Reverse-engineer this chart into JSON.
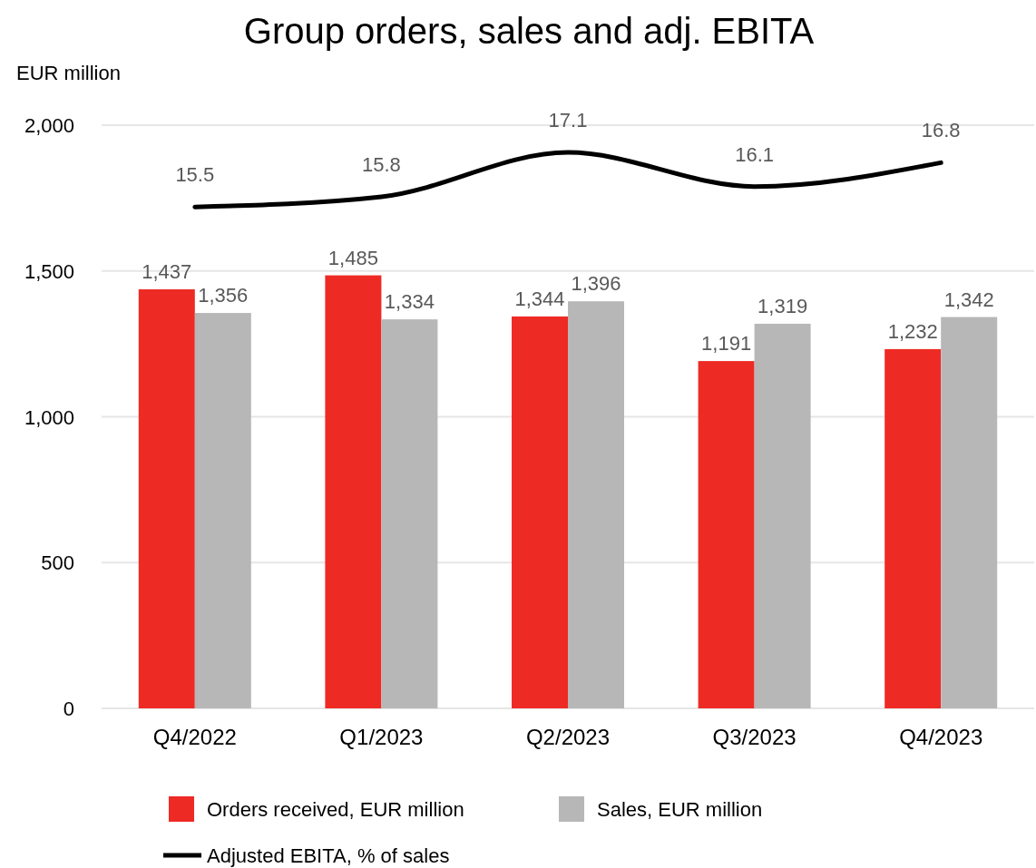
{
  "chart_data": {
    "type": "bar",
    "title": "Group orders, sales and adj. EBITA",
    "ylabel": "EUR million",
    "categories": [
      "Q4/2022",
      "Q1/2023",
      "Q2/2023",
      "Q3/2023",
      "Q4/2023"
    ],
    "series": [
      {
        "name": "Orders received, EUR million",
        "color": "#ee2a24",
        "values": [
          1437,
          1485,
          1344,
          1191,
          1232
        ],
        "value_labels": [
          "1,437",
          "1,485",
          "1,344",
          "1,191",
          "1,232"
        ]
      },
      {
        "name": "Sales, EUR million",
        "color": "#b7b7b7",
        "values": [
          1356,
          1334,
          1396,
          1319,
          1342
        ],
        "value_labels": [
          "1,356",
          "1,334",
          "1,396",
          "1,319",
          "1,342"
        ]
      },
      {
        "name": "Adjusted EBITA, % of sales",
        "type": "line",
        "axis": "y2",
        "color": "#000000",
        "values": [
          15.5,
          15.8,
          17.1,
          16.1,
          16.8
        ],
        "value_labels": [
          "15.5",
          "15.8",
          "17.1",
          "16.1",
          "16.8"
        ]
      }
    ],
    "ylim": [
      0,
      2000
    ],
    "yticks": [
      0,
      {
        "value": 500,
        "label": "500"
      },
      {
        "value": 1000,
        "label": "1,000"
      },
      {
        "value": 1500,
        "label": "1,500"
      },
      {
        "value": 2000,
        "label": "2,000"
      }
    ],
    "y2lim": [
      0.8,
      17.9
    ],
    "grid": "y",
    "legend": "bottom",
    "marker": "none",
    "line_style": "solid"
  }
}
